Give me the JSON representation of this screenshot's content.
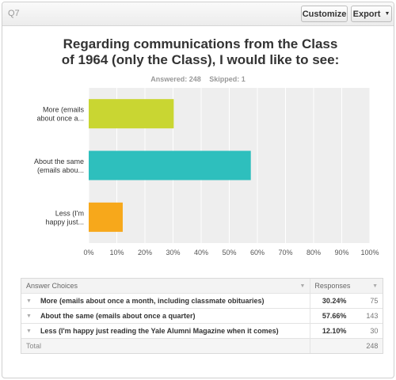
{
  "header": {
    "question_number": "Q7",
    "customize_label": "Customize",
    "export_label": "Export"
  },
  "title": {
    "line1": "Regarding communications from the Class",
    "line2": "of 1964 (only the Class), I would like to see:"
  },
  "stats": {
    "answered": "Answered: 248",
    "skipped": "Skipped: 1"
  },
  "chart_data": {
    "type": "bar",
    "orientation": "horizontal",
    "categories": [
      "More (emails about once a...",
      "About the same (emails abou...",
      "Less (I'm happy just..."
    ],
    "category_lines": [
      [
        "More (emails",
        "about once a..."
      ],
      [
        "About the same",
        "(emails abou..."
      ],
      [
        "Less (I'm",
        "happy just..."
      ]
    ],
    "values": [
      30.24,
      57.66,
      12.1
    ],
    "colors": [
      "#c9d632",
      "#2ebfbd",
      "#f7a81b"
    ],
    "xlim": [
      0,
      100
    ],
    "xticks": [
      "0%",
      "10%",
      "20%",
      "30%",
      "40%",
      "50%",
      "60%",
      "70%",
      "80%",
      "90%",
      "100%"
    ],
    "grid": true,
    "plot_background": "#eeeeee"
  },
  "table": {
    "col_choice": "Answer Choices",
    "col_responses": "Responses",
    "rows": [
      {
        "choice": "More (emails about once a month, including classmate obituaries)",
        "percent": "30.24%",
        "count": "75"
      },
      {
        "choice": "About the same (emails about once a quarter)",
        "percent": "57.66%",
        "count": "143"
      },
      {
        "choice": "Less (I'm happy just reading the Yale Alumni Magazine when it comes)",
        "percent": "12.10%",
        "count": "30"
      }
    ],
    "total_label": "Total",
    "total_value": "248"
  }
}
